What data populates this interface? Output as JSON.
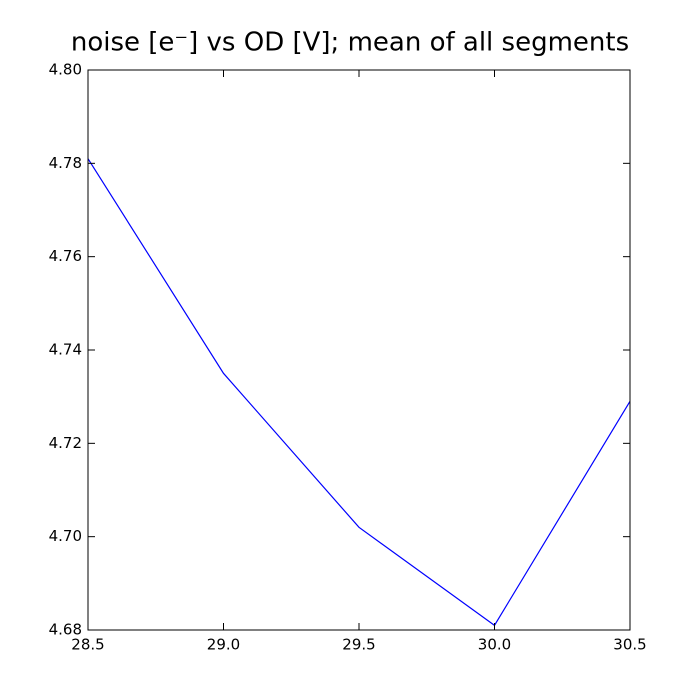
{
  "chart_data": {
    "type": "line",
    "title": "noise [e⁻] vs OD [V]; mean of all segments",
    "x": [
      28.5,
      29.0,
      29.5,
      30.0,
      30.5
    ],
    "series": [
      {
        "name": "mean of all segments",
        "color": "#0000ff",
        "values": [
          4.781,
          4.735,
          4.702,
          4.681,
          4.729
        ]
      }
    ],
    "xlim": [
      28.5,
      30.5
    ],
    "xticks": [
      28.5,
      {
        "value": 29,
        "label": "29.0"
      },
      29.5,
      {
        "value": 30,
        "label": "30.0"
      },
      30.5
    ],
    "ylim": [
      4.68,
      4.8
    ],
    "yticks": [
      4.68,
      {
        "value": 4.7,
        "label": "4.70"
      },
      4.72,
      4.74,
      4.76,
      4.78,
      {
        "value": 4.8,
        "label": "4.80"
      }
    ],
    "grid": false
  }
}
